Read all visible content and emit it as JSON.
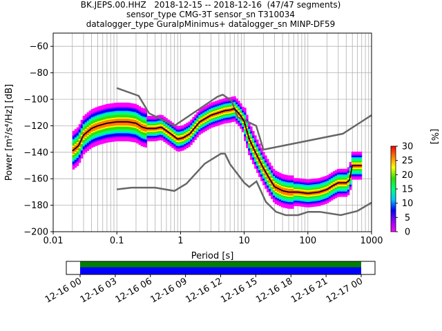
{
  "header": {
    "line1": "BK.JEPS.00.HHZ   2018-12-15 -- 2018-12-16  (47/47 segments)",
    "line2": "sensor_type CMG-3T sensor_sn T310034",
    "line3": "datalogger_type GuralpMinimus+ datalogger_sn MINP-DF59"
  },
  "chart_data": [
    {
      "type": "heatmap",
      "title": "BK.JEPS.00.HHZ   2018-12-15 -- 2018-12-16  (47/47 segments)",
      "xlabel": "Period [s]",
      "ylabel": "Power [m²/s⁴/Hz] [dB]",
      "x_scale": "log",
      "xlim": [
        0.01,
        1000
      ],
      "ylim": [
        -200,
        -50
      ],
      "x_ticks": [
        0.01,
        0.1,
        1,
        10,
        100,
        1000
      ],
      "x_tick_labels": [
        "0.01",
        "0.1",
        "1",
        "10",
        "100",
        "1000"
      ],
      "y_ticks": [
        -200,
        -180,
        -160,
        -140,
        -120,
        -100,
        -80,
        -60
      ],
      "y_tick_labels": [
        "−200",
        "−180",
        "−160",
        "−140",
        "−120",
        "−100",
        "−80",
        "−60"
      ],
      "grid": true,
      "colorbar": {
        "label": "[%]",
        "range": [
          0,
          30
        ],
        "ticks": [
          0,
          5,
          10,
          15,
          20,
          25,
          30
        ],
        "colormap": [
          "#ffffff",
          "#ff00ff",
          "#9000ff",
          "#0000ff",
          "#00c8ff",
          "#00ff80",
          "#30e000",
          "#ffff00",
          "#ff8000",
          "#ff0000"
        ]
      },
      "series": [
        {
          "role": "mode",
          "color": "#000000",
          "x": [
            0.02,
            0.025,
            0.03,
            0.04,
            0.05,
            0.07,
            0.1,
            0.15,
            0.2,
            0.25,
            0.3,
            0.4,
            0.5,
            0.7,
            0.9,
            1.1,
            1.4,
            2,
            3,
            4,
            5,
            6,
            7,
            8,
            9,
            10,
            12,
            15,
            20,
            25,
            30,
            40,
            50,
            70,
            100,
            150,
            200,
            250,
            300,
            400,
            450,
            500,
            700
          ],
          "y": [
            -139,
            -135,
            -127,
            -122,
            -120,
            -118,
            -117,
            -117,
            -118,
            -121,
            -122,
            -122,
            -121,
            -126,
            -130,
            -129,
            -126,
            -117,
            -112,
            -110,
            -108.5,
            -108,
            -107,
            -110,
            -113,
            -117,
            -130,
            -140,
            -152,
            -160,
            -166,
            -169,
            -170,
            -170,
            -171,
            -170,
            -168,
            -165,
            -163,
            -163,
            -161,
            -150,
            -150
          ]
        },
        {
          "role": "noise-model-high",
          "color": "#666666",
          "x": [
            0.1,
            0.22,
            0.32,
            0.8,
            3.8,
            4.6,
            6.3,
            7.9,
            15.4,
            20,
            354.8,
            1000
          ],
          "y": [
            -91.5,
            -97.4,
            -110.5,
            -120,
            -98,
            -96.5,
            -101,
            -113.5,
            -120,
            -138,
            -126,
            -112
          ]
        },
        {
          "role": "noise-model-low",
          "color": "#666666",
          "x": [
            0.1,
            0.17,
            0.4,
            0.8,
            1.24,
            2.4,
            4.3,
            5,
            6,
            10,
            12,
            15.6,
            21.9,
            31.6,
            45,
            70,
            101,
            154,
            328,
            600,
            1000
          ],
          "y": [
            -168,
            -166.7,
            -166.7,
            -169.2,
            -163.7,
            -148.6,
            -141.1,
            -141.1,
            -149,
            -163,
            -166.2,
            -162,
            -177.5,
            -185,
            -187.5,
            -187.5,
            -185,
            -185,
            -187.5,
            -184.4,
            -178
          ]
        }
      ]
    },
    {
      "type": "bar",
      "title": "",
      "xlabel": "",
      "ylabel": "",
      "x_tick_labels": [
        "12-16 00",
        "12-16 03",
        "12-16 06",
        "12-16 09",
        "12-16 12",
        "12-16 15",
        "12-16 18",
        "12-16 21",
        "12-17 00"
      ],
      "segments": [
        {
          "start": "12-16 00",
          "end": "12-17 00",
          "color": "#008000"
        },
        {
          "start": "12-16 00",
          "end": "12-17 00",
          "color": "#0000ff"
        }
      ]
    }
  ]
}
